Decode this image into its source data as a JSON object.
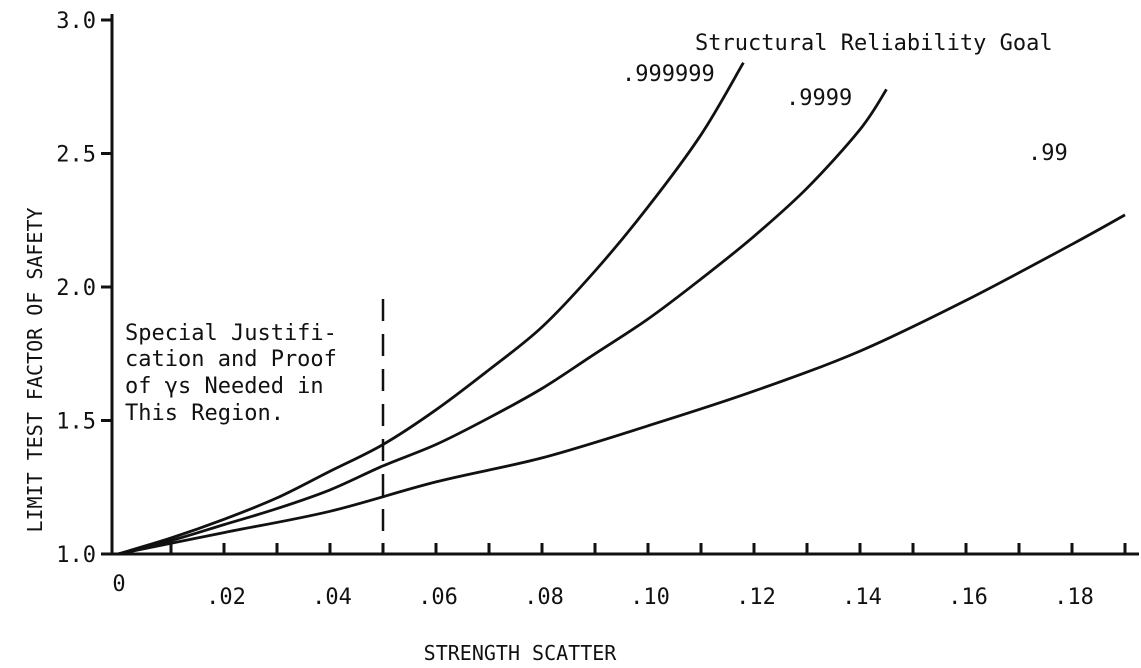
{
  "chart_data": {
    "type": "line",
    "title": "",
    "legend_title": "Structural Reliability Goal",
    "xlabel": "STRENGTH SCATTER",
    "ylabel": "LIMIT TEST FACTOR OF SAFETY",
    "xlim": [
      0,
      0.19
    ],
    "ylim": [
      1.0,
      3.0
    ],
    "x_ticks": [
      0,
      0.02,
      0.04,
      0.06,
      0.08,
      0.1,
      0.12,
      0.14,
      0.16,
      0.18
    ],
    "x_tick_labels": [
      "0",
      ".02",
      ".04",
      ".06",
      ".08",
      ".10",
      ".12",
      ".14",
      ".16",
      ".18"
    ],
    "y_ticks": [
      1.0,
      1.5,
      2.0,
      2.5,
      3.0
    ],
    "y_tick_labels": [
      "1.0",
      "1.5",
      "2.0",
      "2.5",
      "3.0"
    ],
    "grid": false,
    "series": [
      {
        "name": ".999999",
        "x": [
          0,
          0.01,
          0.02,
          0.03,
          0.04,
          0.05,
          0.06,
          0.07,
          0.08,
          0.09,
          0.1,
          0.11,
          0.118
        ],
        "y": [
          1.0,
          1.06,
          1.13,
          1.21,
          1.31,
          1.41,
          1.54,
          1.69,
          1.85,
          2.06,
          2.3,
          2.57,
          2.84
        ]
      },
      {
        "name": ".9999",
        "x": [
          0,
          0.01,
          0.02,
          0.03,
          0.04,
          0.05,
          0.06,
          0.07,
          0.08,
          0.09,
          0.1,
          0.11,
          0.12,
          0.13,
          0.14,
          0.145
        ],
        "y": [
          1.0,
          1.05,
          1.11,
          1.17,
          1.24,
          1.33,
          1.41,
          1.51,
          1.62,
          1.75,
          1.88,
          2.03,
          2.19,
          2.37,
          2.59,
          2.74
        ]
      },
      {
        "name": ".99",
        "x": [
          0,
          0.02,
          0.04,
          0.06,
          0.08,
          0.1,
          0.12,
          0.14,
          0.16,
          0.18,
          0.19
        ],
        "y": [
          1.0,
          1.08,
          1.16,
          1.27,
          1.36,
          1.48,
          1.61,
          1.76,
          1.95,
          2.16,
          2.27
        ]
      }
    ],
    "annotations": {
      "vertical_line_x": 0.05,
      "note_lines": [
        "Special Justifi-",
        "cation and Proof",
        "of γs Needed in",
        "This Region."
      ]
    }
  }
}
